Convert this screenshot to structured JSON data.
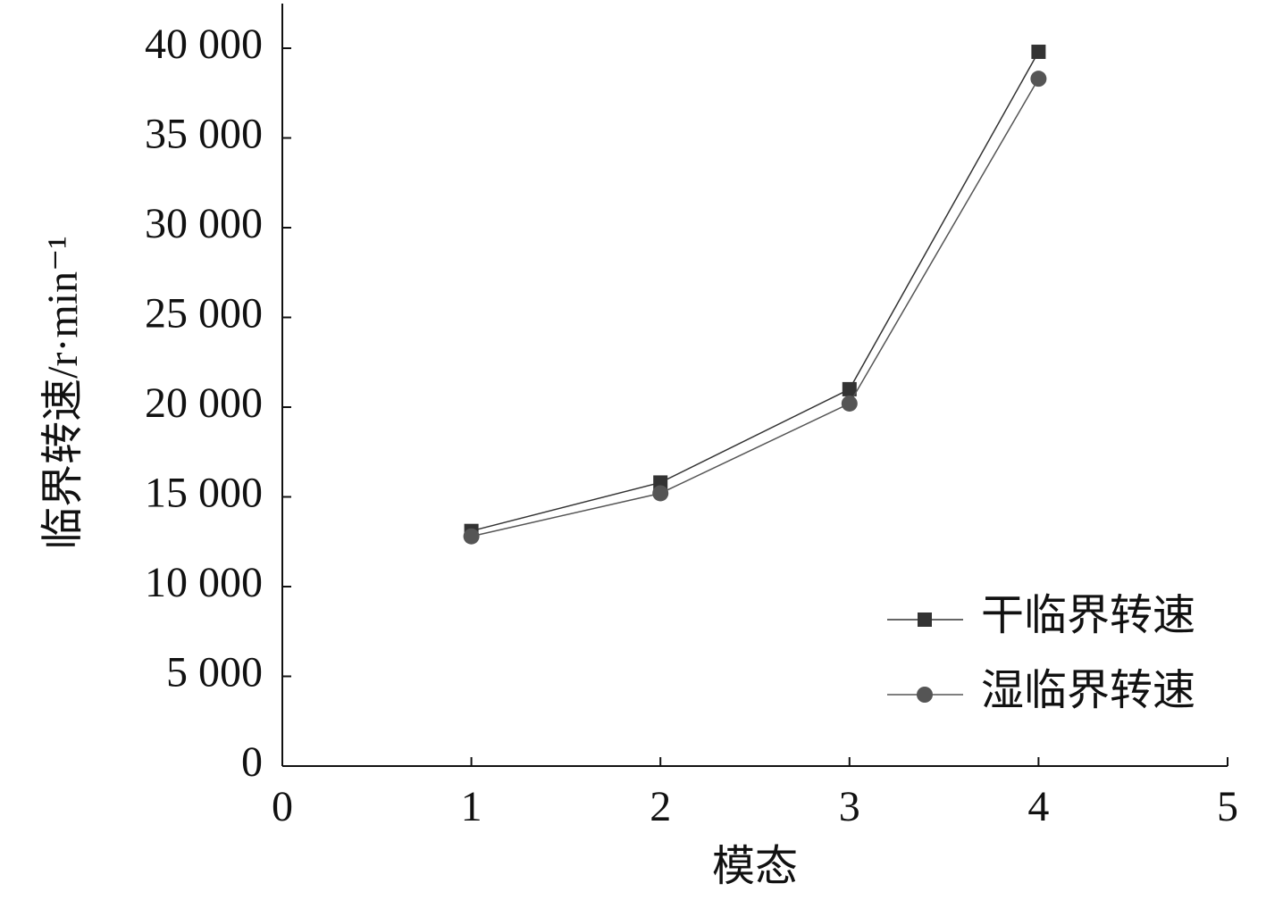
{
  "chart_data": {
    "type": "line",
    "x_label": "模态",
    "y_label": "临界转速/r·min⁻¹",
    "xlim": [
      0,
      5
    ],
    "xticks": [
      0,
      1,
      2,
      3,
      4,
      5
    ],
    "ylim": [
      0,
      40000
    ],
    "yticks": [
      {
        "value": 0,
        "label": "0"
      },
      {
        "value": 5000,
        "label": "5 000"
      },
      {
        "value": 10000,
        "label": "10 000"
      },
      {
        "value": 15000,
        "label": "15 000"
      },
      {
        "value": 20000,
        "label": "20 000"
      },
      {
        "value": 25000,
        "label": "25 000"
      },
      {
        "value": 30000,
        "label": "30 000"
      },
      {
        "value": 35000,
        "label": "35 000"
      },
      {
        "value": 40000,
        "label": "40 000"
      }
    ],
    "x": [
      1,
      2,
      3,
      4
    ],
    "series": [
      {
        "name": "干临界转速",
        "color": "#333333",
        "marker": "square",
        "values": [
          13100,
          15800,
          21000,
          39800
        ]
      },
      {
        "name": "湿临界转速",
        "color": "#555555",
        "marker": "circle",
        "values": [
          12800,
          15200,
          20200,
          38300
        ]
      }
    ],
    "legend": "lower right"
  }
}
